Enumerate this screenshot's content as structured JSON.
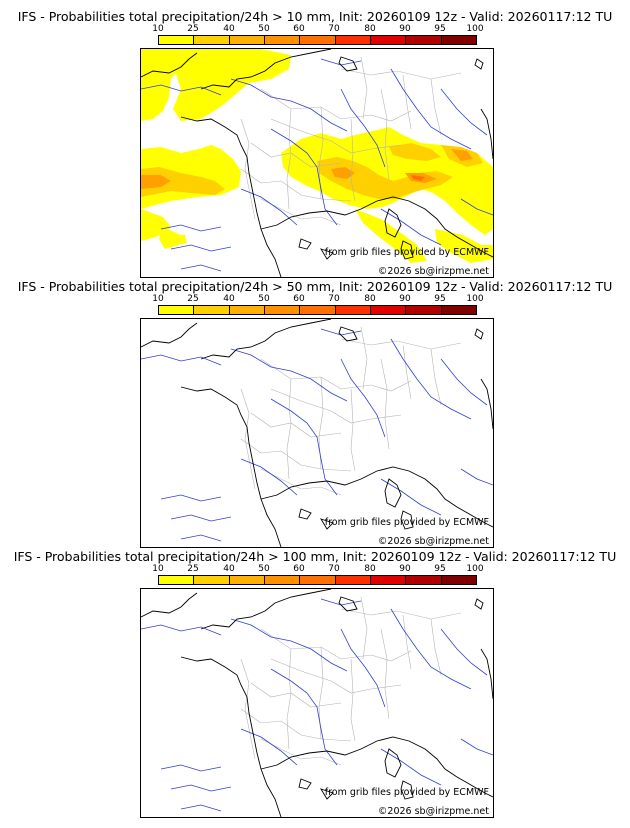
{
  "colorbar": {
    "ticks": [
      "10",
      "25",
      "40",
      "50",
      "60",
      "70",
      "80",
      "90",
      "95",
      "100"
    ],
    "colors": [
      "#ffff00",
      "#ffd000",
      "#ffb000",
      "#ff9000",
      "#ff7000",
      "#ff3000",
      "#e00000",
      "#b00000",
      "#800000"
    ]
  },
  "panels": [
    {
      "title": "IFS - Probabilities total precipitation/24h > 10 mm, Init: 20260109 12z - Valid: 20260117:12 TU",
      "credit_source": "from grib files provided by ECMWF",
      "credit_copyright": "©2026 sb@irizpme.net",
      "has_precip": true
    },
    {
      "title": "IFS - Probabilities total precipitation/24h > 50 mm, Init: 20260109 12z - Valid: 20260117:12 TU",
      "credit_source": "from grib files provided by ECMWF",
      "credit_copyright": "©2026 sb@irizpme.net",
      "has_precip": false
    },
    {
      "title": "IFS - Probabilities total precipitation/24h > 100 mm, Init: 20260109 12z - Valid: 20260117:12 TU",
      "credit_source": "from grib files provided by ECMWF",
      "credit_copyright": "©2026 sb@irizpme.net",
      "has_precip": false
    }
  ],
  "map_colors": {
    "coast": "#000000",
    "rivers": "#3040d0",
    "regions": "#b4b4b4",
    "precip_light": "#ffff00",
    "precip_mid": "#ffd000",
    "precip_high": "#ffa000",
    "precip_peak": "#ff7000"
  }
}
